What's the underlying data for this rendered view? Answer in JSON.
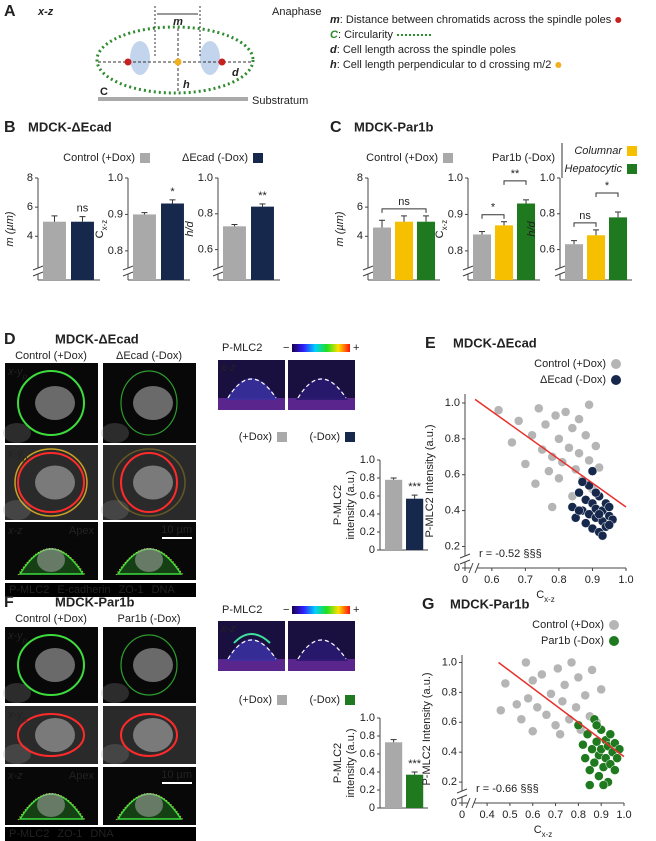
{
  "panel_a": {
    "letter": "A",
    "view": "x-z",
    "phase": "Anaphase",
    "m": "m",
    "d": "d",
    "h": "h",
    "c": "C",
    "substratum": "Substratum",
    "legend": [
      {
        "symbol": "m",
        "text": ": Distance between chromatids across the spindle poles"
      },
      {
        "symbol": "C",
        "text": ": Circularity"
      },
      {
        "symbol": "d",
        "text": ": Cell length across the spindle poles"
      },
      {
        "symbol": "h",
        "text": ": Cell length perpendicular to d crossing m/2"
      }
    ]
  },
  "panel_b": {
    "letter": "B",
    "title": "MDCK-ΔEcad",
    "legend": [
      {
        "name": "Control (+Dox)",
        "color": "#a9a9a9"
      },
      {
        "name": "ΔEcad (-Dox)",
        "color": "#16294d"
      }
    ]
  },
  "panel_c": {
    "letter": "C",
    "title": "MDCK-Par1b",
    "legend": [
      {
        "name": "Control (+Dox)",
        "color": "#a9a9a9"
      },
      {
        "name": "Par1b (-Dox)"
      }
    ],
    "subtypes": [
      {
        "name": "Columnar",
        "color": "#f6c000"
      },
      {
        "name": "Hepatocytic",
        "color": "#1f7a1f"
      }
    ]
  },
  "panel_d": {
    "letter": "D",
    "title": "MDCK-ΔEcad",
    "columns": [
      "Control (+Dox)",
      "ΔEcad (-Dox)"
    ],
    "rows": [
      {
        "text": "x-y",
        "sub": "p"
      },
      {
        "text": "x-y",
        "sub": "p"
      },
      {
        "text": "x-z"
      }
    ],
    "apex": "Apex",
    "scale": "10 µm",
    "channels": [
      {
        "name": "P-MLC2",
        "color": "#3ddc3d"
      },
      {
        "name": "E-cadherin",
        "color": "#f0c020"
      },
      {
        "name": "ZO-1",
        "color": "#ff2a2a"
      },
      {
        "name": "DNA",
        "color": "#cccccc"
      }
    ],
    "colorbar": {
      "label": "P-MLC2",
      "min": "−",
      "max": "+"
    },
    "xz": "x-z",
    "legend": [
      {
        "name": "(+Dox)",
        "color": "#a9a9a9"
      },
      {
        "name": "(-Dox)",
        "color": "#16294d"
      }
    ]
  },
  "panel_f": {
    "letter": "F",
    "title": "MDCK-Par1b",
    "columns": [
      "Control (+Dox)",
      "Par1b (-Dox)"
    ],
    "rows": [
      {
        "text": "x-y",
        "sub": "p"
      },
      {
        "text": "x-y",
        "sub": "p"
      },
      {
        "text": "x-z"
      }
    ],
    "apex": "Apex",
    "scale": "10 µm",
    "channels": [
      {
        "name": "P-MLC2",
        "color": "#3ddc3d"
      },
      {
        "name": "ZO-1",
        "color": "#ff2a2a"
      },
      {
        "name": "DNA",
        "color": "#cccccc"
      }
    ],
    "colorbar": {
      "label": "P-MLC2",
      "min": "−",
      "max": "+"
    },
    "xz": "x-z",
    "legend": [
      {
        "name": "(+Dox)",
        "color": "#a9a9a9"
      },
      {
        "name": "(-Dox)",
        "color": "#1f7a1f"
      }
    ]
  },
  "chart_data": [
    {
      "type": "bar",
      "ylabel": "m (µm)",
      "values": [
        5.0,
        5.0
      ],
      "errors": [
        0.4,
        0.35
      ],
      "colors": [
        "#a9a9a9",
        "#16294d"
      ],
      "ylim": [
        1,
        8
      ],
      "yticks": [
        4,
        6,
        8
      ],
      "axis_break": true,
      "annotations": [
        {
          "text": "ns",
          "bars": [
            1
          ]
        }
      ]
    },
    {
      "type": "bar",
      "ylabel": "C",
      "ylabel_sub": "x-z",
      "values": [
        0.9,
        0.93
      ],
      "errors": [
        0.005,
        0.01
      ],
      "colors": [
        "#a9a9a9",
        "#16294d"
      ],
      "ylim": [
        0.72,
        1.0
      ],
      "yticks": [
        0.8,
        0.9,
        {
          "value": 1.0,
          "label": "1.0"
        }
      ],
      "axis_break": true,
      "annotations": [
        {
          "text": "*",
          "bars": [
            1
          ]
        }
      ]
    },
    {
      "type": "bar",
      "ylabel": "h/d",
      "values": [
        0.73,
        0.84
      ],
      "errors": [
        0.01,
        0.015
      ],
      "colors": [
        "#a9a9a9",
        "#16294d"
      ],
      "ylim": [
        0.43,
        1.0
      ],
      "yticks": [
        0.6,
        0.8,
        {
          "value": 1.0,
          "label": "1.0"
        }
      ],
      "axis_break": true,
      "annotations": [
        {
          "text": "**",
          "bars": [
            1
          ]
        }
      ]
    },
    {
      "type": "bar",
      "ylabel": "m (µm)",
      "values": [
        4.6,
        5.0,
        5.0
      ],
      "errors": [
        0.5,
        0.4,
        0.4
      ],
      "colors": [
        "#a9a9a9",
        "#f6c000",
        "#1f7a1f"
      ],
      "ylim": [
        1,
        8
      ],
      "yticks": [
        4,
        6,
        8
      ],
      "axis_break": true,
      "annotations": [
        {
          "text": "ns",
          "bars": [
            0,
            2
          ]
        }
      ]
    },
    {
      "type": "bar",
      "ylabel": "C",
      "ylabel_sub": "x-z",
      "values": [
        0.845,
        0.87,
        0.93
      ],
      "errors": [
        0.008,
        0.01,
        0.01
      ],
      "colors": [
        "#a9a9a9",
        "#f6c000",
        "#1f7a1f"
      ],
      "ylim": [
        0.72,
        1.0
      ],
      "yticks": [
        0.8,
        0.9,
        {
          "value": 1.0,
          "label": "1.0"
        }
      ],
      "axis_break": true,
      "annotations": [
        {
          "text": "*",
          "bars": [
            0,
            1
          ]
        },
        {
          "text": "**",
          "bars": [
            1,
            2
          ]
        }
      ]
    },
    {
      "type": "bar",
      "ylabel": "h/d",
      "values": [
        0.63,
        0.68,
        0.78
      ],
      "errors": [
        0.02,
        0.03,
        0.03
      ],
      "colors": [
        "#a9a9a9",
        "#f6c000",
        "#1f7a1f"
      ],
      "ylim": [
        0.43,
        1.0
      ],
      "yticks": [
        0.6,
        0.8,
        {
          "value": 1.0,
          "label": "1.0"
        }
      ],
      "axis_break": true,
      "annotations": [
        {
          "text": "ns",
          "bars": [
            0,
            1
          ]
        },
        {
          "text": "*",
          "bars": [
            1,
            2
          ]
        }
      ]
    },
    {
      "type": "bar",
      "ylabel": [
        "P-MLC2",
        "intensity (a.u.)"
      ],
      "values": [
        0.78,
        0.57
      ],
      "errors": [
        0.02,
        0.04
      ],
      "colors": [
        "#a9a9a9",
        "#16294d"
      ],
      "ylim": [
        0,
        1.0
      ],
      "yticks": [
        0,
        0.2,
        0.4,
        0.6,
        0.8,
        {
          "value": 1.0,
          "label": "1.0"
        }
      ],
      "annotations": [
        {
          "text": "***",
          "bars": [
            1
          ]
        }
      ]
    },
    {
      "type": "scatter",
      "letter": "E",
      "title": "MDCK-ΔEcad",
      "ylabel": "P-MLC2 Intensity (a.u.)",
      "xlabel": "C",
      "xlabel_sub": "x-z",
      "annotation": "r = -0.52 §§§",
      "xlim": [
        0.52,
        1.0
      ],
      "ylim": [
        0.08,
        1.05
      ],
      "xticks": [
        0,
        0.6,
        0.7,
        0.8,
        0.9,
        {
          "value": 1.0,
          "label": "1.0"
        }
      ],
      "yticks": [
        0,
        0.2,
        0.4,
        0.6,
        0.8,
        {
          "value": 1.0,
          "label": "1.0"
        }
      ],
      "fit": {
        "x": [
          0.55,
          1.0
        ],
        "y": [
          1.02,
          0.42
        ],
        "color": "#e8302a"
      },
      "series": [
        {
          "name": "Control (+Dox)",
          "color": "#b5b5b5",
          "x": [
            0.62,
            0.66,
            0.68,
            0.7,
            0.72,
            0.73,
            0.74,
            0.75,
            0.76,
            0.77,
            0.78,
            0.79,
            0.8,
            0.8,
            0.81,
            0.82,
            0.83,
            0.84,
            0.84,
            0.85,
            0.86,
            0.86,
            0.87,
            0.88,
            0.89,
            0.89,
            0.9,
            0.91,
            0.92,
            0.78
          ],
          "values": [
            0.96,
            0.78,
            0.9,
            0.66,
            0.82,
            0.55,
            0.97,
            0.74,
            0.88,
            0.62,
            0.7,
            0.93,
            0.8,
            0.58,
            0.67,
            0.95,
            0.75,
            0.86,
            0.48,
            0.63,
            0.91,
            0.72,
            0.57,
            0.82,
            0.68,
            0.99,
            0.52,
            0.76,
            0.64,
            0.42
          ]
        },
        {
          "name": "ΔEcad (-Dox)",
          "color": "#16294d",
          "x": [
            0.84,
            0.85,
            0.86,
            0.87,
            0.88,
            0.88,
            0.89,
            0.89,
            0.9,
            0.9,
            0.91,
            0.91,
            0.92,
            0.92,
            0.93,
            0.93,
            0.94,
            0.94,
            0.95,
            0.95,
            0.96,
            0.9,
            0.87,
            0.92,
            0.93,
            0.95,
            0.86,
            0.91
          ],
          "values": [
            0.42,
            0.36,
            0.5,
            0.4,
            0.33,
            0.46,
            0.38,
            0.54,
            0.3,
            0.44,
            0.36,
            0.41,
            0.28,
            0.48,
            0.34,
            0.4,
            0.44,
            0.31,
            0.37,
            0.42,
            0.35,
            0.62,
            0.56,
            0.38,
            0.26,
            0.32,
            0.4,
            0.5
          ]
        }
      ]
    },
    {
      "type": "bar",
      "ylabel": [
        "P-MLC2",
        "intensity (a.u.)"
      ],
      "values": [
        0.73,
        0.37
      ],
      "errors": [
        0.03,
        0.03
      ],
      "colors": [
        "#a9a9a9",
        "#1f7a1f"
      ],
      "ylim": [
        0,
        1.0
      ],
      "yticks": [
        0,
        0.2,
        0.4,
        0.6,
        0.8,
        {
          "value": 1.0,
          "label": "1.0"
        }
      ],
      "annotations": [
        {
          "text": "***",
          "bars": [
            1
          ]
        }
      ]
    },
    {
      "type": "scatter",
      "letter": "G",
      "title": "MDCK-Par1b",
      "ylabel": "P-MLC2 Intensity (a.u.)",
      "xlabel": "C",
      "xlabel_sub": "x-z",
      "annotation": "r = -0.66 §§§",
      "xlim": [
        0.29,
        1.0
      ],
      "ylim": [
        0.06,
        1.05
      ],
      "xticks": [
        0,
        0.4,
        0.5,
        0.6,
        0.7,
        0.8,
        0.9,
        {
          "value": 1.0,
          "label": "1.0"
        }
      ],
      "yticks": [
        0,
        0.2,
        0.4,
        0.6,
        0.8,
        {
          "value": 1.0,
          "label": "1.0"
        }
      ],
      "fit": {
        "x": [
          0.45,
          1.0
        ],
        "y": [
          1.0,
          0.37
        ],
        "color": "#e8302a"
      },
      "series": [
        {
          "name": "Control (+Dox)",
          "color": "#b5b5b5",
          "x": [
            0.46,
            0.48,
            0.53,
            0.55,
            0.57,
            0.58,
            0.6,
            0.62,
            0.64,
            0.66,
            0.68,
            0.7,
            0.71,
            0.73,
            0.74,
            0.76,
            0.77,
            0.79,
            0.8,
            0.81,
            0.83,
            0.85,
            0.86,
            0.88,
            0.9,
            0.72,
            0.6
          ],
          "values": [
            0.68,
            0.86,
            0.72,
            0.62,
            1.0,
            0.76,
            0.88,
            0.7,
            0.92,
            0.65,
            0.79,
            0.58,
            0.96,
            0.74,
            0.85,
            0.62,
            1.0,
            0.7,
            0.9,
            0.55,
            0.78,
            0.64,
            0.95,
            0.6,
            0.82,
            0.52,
            0.54
          ]
        },
        {
          "name": "Par1b (-Dox)",
          "color": "#1f7a1f",
          "x": [
            0.8,
            0.82,
            0.83,
            0.84,
            0.85,
            0.86,
            0.87,
            0.87,
            0.88,
            0.89,
            0.89,
            0.9,
            0.9,
            0.91,
            0.92,
            0.92,
            0.93,
            0.93,
            0.94,
            0.94,
            0.95,
            0.96,
            0.96,
            0.97,
            0.98,
            0.91,
            0.85,
            0.88
          ],
          "values": [
            0.58,
            0.45,
            0.36,
            0.52,
            0.28,
            0.42,
            0.62,
            0.33,
            0.47,
            0.38,
            0.24,
            0.55,
            0.42,
            0.3,
            0.48,
            0.36,
            0.2,
            0.44,
            0.52,
            0.32,
            0.4,
            0.28,
            0.46,
            0.36,
            0.42,
            0.18,
            0.18,
            0.58
          ]
        }
      ]
    }
  ]
}
